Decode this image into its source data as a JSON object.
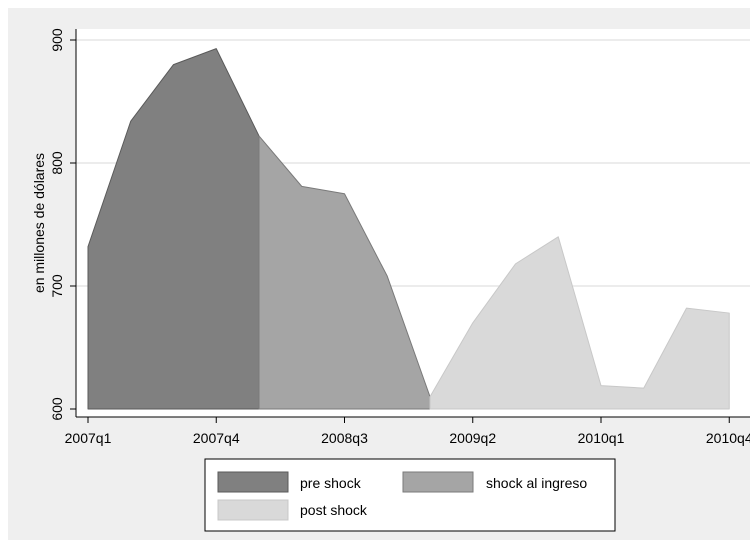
{
  "chart_data": {
    "type": "area",
    "ylabel": "en millones de dólares",
    "xlabel": "",
    "ylim": [
      600,
      910
    ],
    "yticks": [
      600,
      700,
      800,
      900
    ],
    "x_tick_labels": [
      "2007q1",
      "2007q4",
      "2008q3",
      "2009q2",
      "2010q1",
      "2010q4"
    ],
    "x_tick_index": [
      0,
      3,
      6,
      9,
      12,
      15
    ],
    "grid": true,
    "legend_position": "bottom",
    "series": [
      {
        "name": "pre shock",
        "color": "#808080",
        "x": [
          "2007q1",
          "2007q2",
          "2007q3",
          "2007q4",
          "2008q1"
        ],
        "values": [
          732,
          834,
          880,
          893,
          822
        ]
      },
      {
        "name": "shock al ingreso",
        "color": "#a5a5a5",
        "x": [
          "2008q1",
          "2008q2",
          "2008q3",
          "2008q4",
          "2009q1"
        ],
        "values": [
          822,
          781,
          775,
          708,
          610
        ]
      },
      {
        "name": "post shock",
        "color": "#d9d9d9",
        "x": [
          "2009q1",
          "2009q2",
          "2009q3",
          "2009q4",
          "2010q1",
          "2010q2",
          "2010q3",
          "2010q4"
        ],
        "values": [
          610,
          670,
          718,
          740,
          619,
          617,
          682,
          678
        ]
      }
    ]
  }
}
